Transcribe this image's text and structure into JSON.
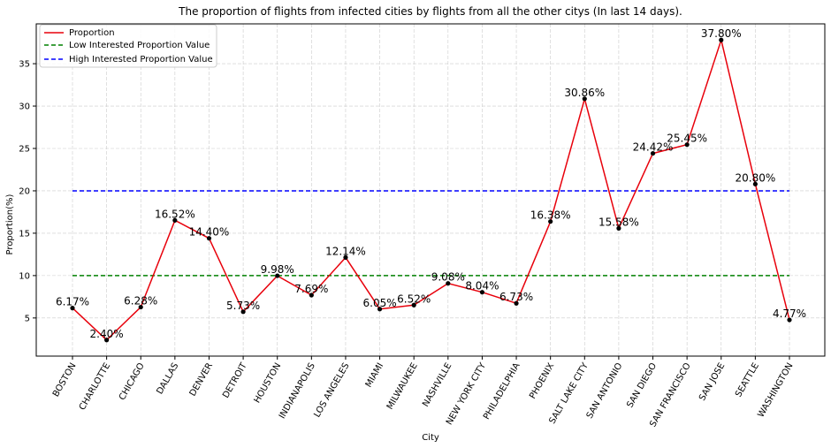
{
  "chart_data": {
    "type": "line",
    "title": "The proportion of flights from infected cities by flights from all the other citys (In last 14 days).",
    "xlabel": "City",
    "ylabel": "Proportion(%)",
    "ylim": [
      0.5,
      39.7
    ],
    "yticks": [
      5,
      10,
      15,
      20,
      25,
      30,
      35
    ],
    "grid": true,
    "legend_position": "top-left",
    "categories": [
      "BOSTON",
      "CHARLOTTE",
      "CHICAGO",
      "DALLAS",
      "DENVER",
      "DETROIT",
      "HOUSTON",
      "INDIANAPOLIS",
      "LOS ANGELES",
      "MIAMI",
      "MILWAUKEE",
      "NASHVILLE",
      "NEW YORK CITY",
      "PHILADELPHIA",
      "PHOENIX",
      "SALT LAKE CITY",
      "SAN ANTONIO",
      "SAN DIEGO",
      "SAN FRANCISCO",
      "SAN JOSE",
      "SEATTLE",
      "WASHINGTON"
    ],
    "series": [
      {
        "name": "Proportion",
        "color": "#e8000b",
        "style": "solid",
        "values": [
          6.17,
          2.4,
          6.28,
          16.52,
          14.4,
          5.73,
          9.98,
          7.69,
          12.14,
          6.05,
          6.52,
          9.08,
          8.04,
          6.73,
          16.38,
          30.86,
          15.58,
          24.42,
          25.45,
          37.8,
          20.8,
          4.77
        ],
        "labels": [
          "6.17%",
          "2.40%",
          "6.28%",
          "16.52%",
          "14.40%",
          "5.73%",
          "9.98%",
          "7.69%",
          "12.14%",
          "6.05%",
          "6.52%",
          "9.08%",
          "8.04%",
          "6.73%",
          "16.38%",
          "30.86%",
          "15.58%",
          "24.42%",
          "25.45%",
          "37.80%",
          "20.80%",
          "4.77%"
        ]
      },
      {
        "name": "Low Interested Proportion Value",
        "color": "#008000",
        "style": "dashed",
        "constant": 10
      },
      {
        "name": "High Interested Proportion Value",
        "color": "#0000ff",
        "style": "dashed",
        "constant": 20
      }
    ]
  }
}
